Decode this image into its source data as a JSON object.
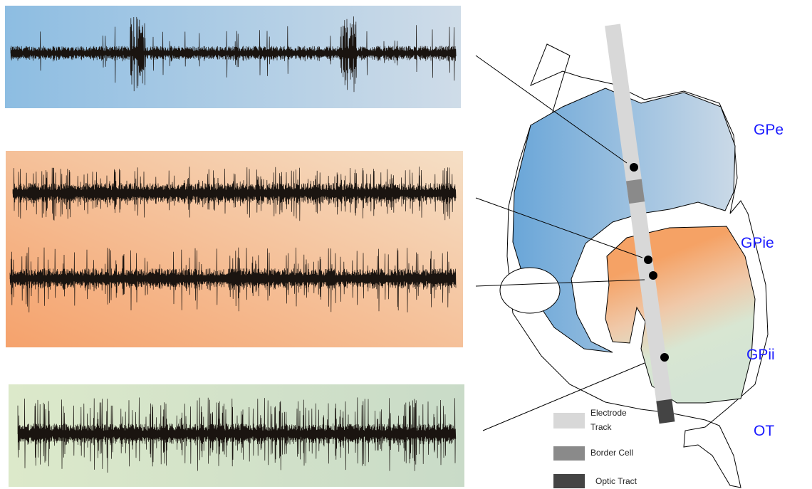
{
  "labels": {
    "gpe": "GPe",
    "gpie": "GPie",
    "gpii": "GPii",
    "ot": "OT"
  },
  "legend": {
    "items": [
      {
        "label": "Electrode Track"
      },
      {
        "label": "Border Cell"
      },
      {
        "label": "Optic Tract"
      }
    ]
  }
}
